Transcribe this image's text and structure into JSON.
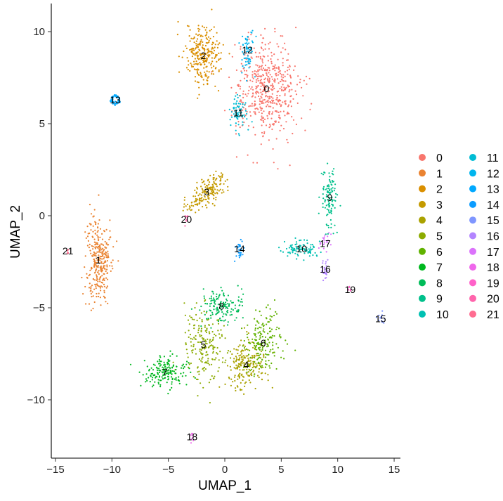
{
  "chart_data": {
    "type": "scatter",
    "title": "",
    "xlabel": "UMAP_1",
    "ylabel": "UMAP_2",
    "xlim": [
      -15.5,
      15.5
    ],
    "ylim": [
      -13.2,
      11.4
    ],
    "xticks": [
      -15,
      -10,
      -5,
      0,
      5,
      10,
      15
    ],
    "yticks": [
      -10,
      -5,
      0,
      5,
      10
    ],
    "xtick_labels": [
      "−15",
      "−10",
      "−5",
      "0",
      "5",
      "10",
      "15"
    ],
    "ytick_labels": [
      "−10",
      "−5",
      "0",
      "5",
      "10"
    ],
    "grid": false,
    "legend_position": "right",
    "clusters": [
      {
        "label": "0",
        "color": "#F8766D",
        "x": 3.7,
        "y": 6.9,
        "sx": 1.4,
        "sy": 1.3,
        "n": 520
      },
      {
        "label": "1",
        "color": "#EA8331",
        "x": -11.2,
        "y": -2.4,
        "sx": 0.55,
        "sy": 1.2,
        "n": 300
      },
      {
        "label": "2",
        "color": "#DA8F00",
        "x": -1.9,
        "y": 8.7,
        "sx": 0.8,
        "sy": 0.8,
        "n": 260
      },
      {
        "label": "3",
        "color": "#C49A00",
        "x": -1.6,
        "y": 1.3,
        "sx": 0.9,
        "sy": 0.35,
        "n": 180
      },
      {
        "label": "4",
        "color": "#AAA200",
        "x": 1.9,
        "y": -8.1,
        "sx": 0.9,
        "sy": 0.6,
        "n": 200
      },
      {
        "label": "5",
        "color": "#8CAB00",
        "x": -1.9,
        "y": -7.0,
        "sx": 0.9,
        "sy": 1.0,
        "n": 200
      },
      {
        "label": "6",
        "color": "#60B200",
        "x": 3.4,
        "y": -6.9,
        "sx": 0.8,
        "sy": 0.7,
        "n": 180
      },
      {
        "label": "7",
        "color": "#00B81F",
        "x": -5.3,
        "y": -8.5,
        "sx": 1.1,
        "sy": 0.4,
        "n": 170
      },
      {
        "label": "8",
        "color": "#00BC59",
        "x": -0.3,
        "y": -4.9,
        "sx": 0.9,
        "sy": 0.45,
        "n": 150
      },
      {
        "label": "9",
        "color": "#00C08B",
        "x": 9.3,
        "y": 1.0,
        "sx": 0.4,
        "sy": 0.8,
        "n": 110
      },
      {
        "label": "10",
        "color": "#00C0B2",
        "x": 6.8,
        "y": -1.8,
        "sx": 0.8,
        "sy": 0.25,
        "n": 90
      },
      {
        "label": "11",
        "color": "#00BCD4",
        "x": 1.2,
        "y": 5.6,
        "sx": 0.4,
        "sy": 0.5,
        "n": 70
      },
      {
        "label": "12",
        "color": "#00B5EE",
        "x": 2.0,
        "y": 9.0,
        "sx": 0.3,
        "sy": 0.6,
        "n": 60
      },
      {
        "label": "13",
        "color": "#00A9FF",
        "x": -9.7,
        "y": 6.3,
        "sx": 0.35,
        "sy": 0.2,
        "n": 60,
        "ring": true
      },
      {
        "label": "14",
        "color": "#0C9CFF",
        "x": 1.3,
        "y": -1.8,
        "sx": 0.15,
        "sy": 0.3,
        "n": 30
      },
      {
        "label": "15",
        "color": "#7F96FF",
        "x": 13.8,
        "y": -5.6,
        "sx": 0.2,
        "sy": 0.15,
        "n": 15
      },
      {
        "label": "16",
        "color": "#B385FF",
        "x": 8.9,
        "y": -2.9,
        "sx": 0.15,
        "sy": 0.3,
        "n": 25
      },
      {
        "label": "17",
        "color": "#DB72FB",
        "x": 8.9,
        "y": -1.5,
        "sx": 0.25,
        "sy": 0.3,
        "n": 20
      },
      {
        "label": "18",
        "color": "#EF67EB",
        "x": -2.9,
        "y": -12.0,
        "sx": 0.06,
        "sy": 0.15,
        "n": 8
      },
      {
        "label": "19",
        "color": "#FF61C9",
        "x": 11.1,
        "y": -4.0,
        "sx": 0.2,
        "sy": 0.1,
        "n": 8
      },
      {
        "label": "20",
        "color": "#FF65AC",
        "x": -3.4,
        "y": -0.2,
        "sx": 0.1,
        "sy": 0.15,
        "n": 8
      },
      {
        "label": "21",
        "color": "#FF6C91",
        "x": -13.9,
        "y": -1.9,
        "sx": 0.1,
        "sy": 0.1,
        "n": 5
      }
    ]
  }
}
